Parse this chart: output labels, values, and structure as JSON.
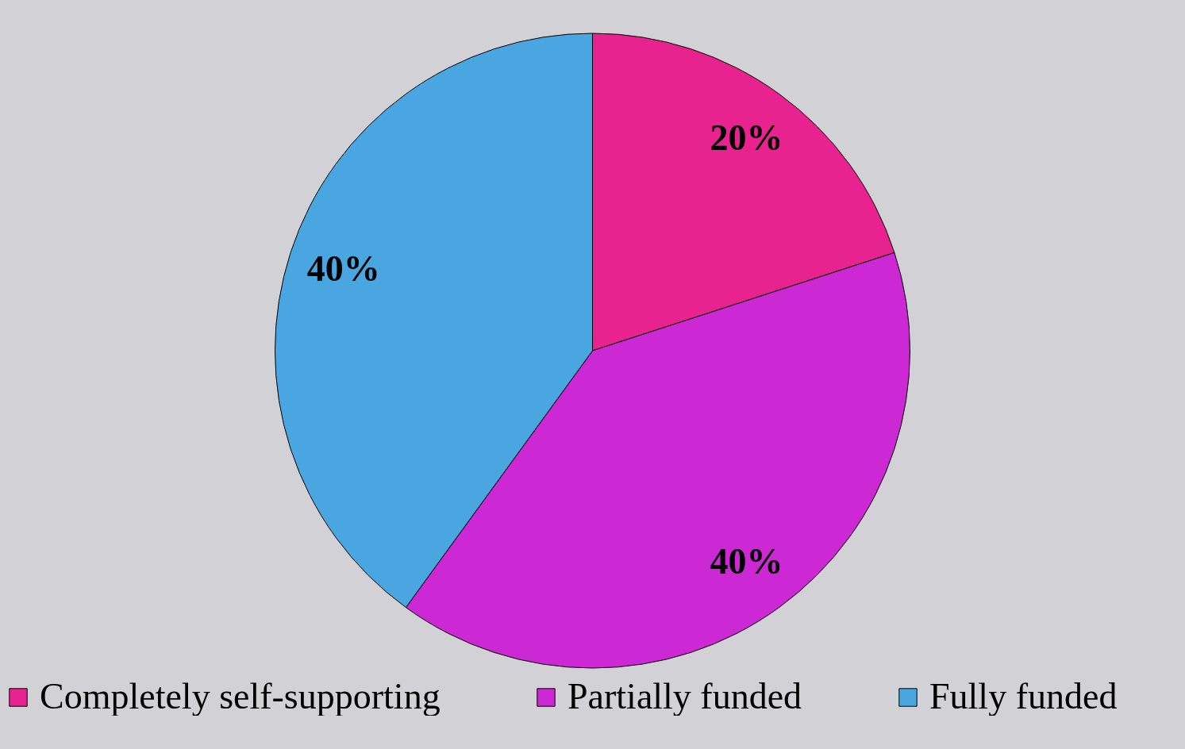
{
  "chart_data": {
    "type": "pie",
    "categories": [
      "Completely self-supporting",
      "Partially funded",
      "Fully funded"
    ],
    "values": [
      20,
      40,
      40
    ],
    "colors": [
      "#e8238f",
      "#cc28d4",
      "#4aa6e0"
    ],
    "value_labels": [
      "20%",
      "40%",
      "40%"
    ],
    "legend": "bottom"
  }
}
